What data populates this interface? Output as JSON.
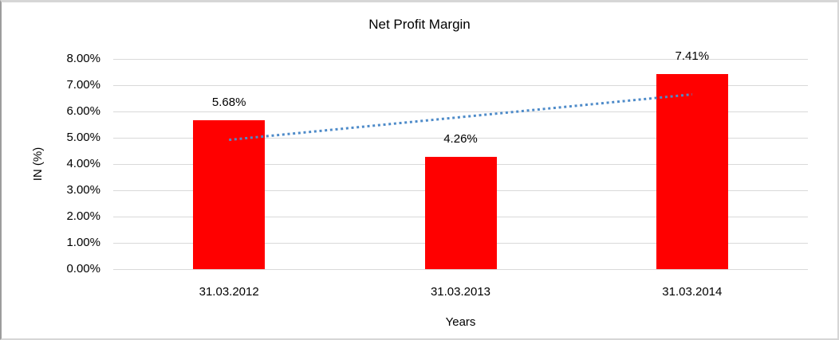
{
  "frame": {
    "background": "#FFFFFF",
    "border_color": "#D6D6D6"
  },
  "chart_data": {
    "type": "bar",
    "title": "Net Profit Margin",
    "xlabel": "Years",
    "ylabel": "IN (%)",
    "categories": [
      "31.03.2012",
      "31.03.2013",
      "31.03.2014"
    ],
    "series": [
      {
        "name": "Net Profit Margin",
        "values": [
          5.68,
          4.26,
          7.41
        ],
        "data_labels": [
          "5.68%",
          "4.26%",
          "7.41%"
        ],
        "color": "#FF0000"
      }
    ],
    "ylim": [
      0,
      8
    ],
    "y_ticks": [
      {
        "value": 0,
        "label": "0.00%"
      },
      {
        "value": 1,
        "label": "1.00%"
      },
      {
        "value": 2,
        "label": "2.00%"
      },
      {
        "value": 3,
        "label": "3.00%"
      },
      {
        "value": 4,
        "label": "4.00%"
      },
      {
        "value": 5,
        "label": "5.00%"
      },
      {
        "value": 6,
        "label": "6.00%"
      },
      {
        "value": 7,
        "label": "7.00%"
      },
      {
        "value": 8,
        "label": "8.00%"
      },
      {
        "value": 9,
        "label": ""
      }
    ],
    "grid": true,
    "gridline_color": "#D9D9D9",
    "legend": "none",
    "trendline": {
      "type": "linear",
      "style": "dotted",
      "color": "#4E8BC9",
      "y_start": 4.92,
      "y_end": 6.65
    }
  }
}
